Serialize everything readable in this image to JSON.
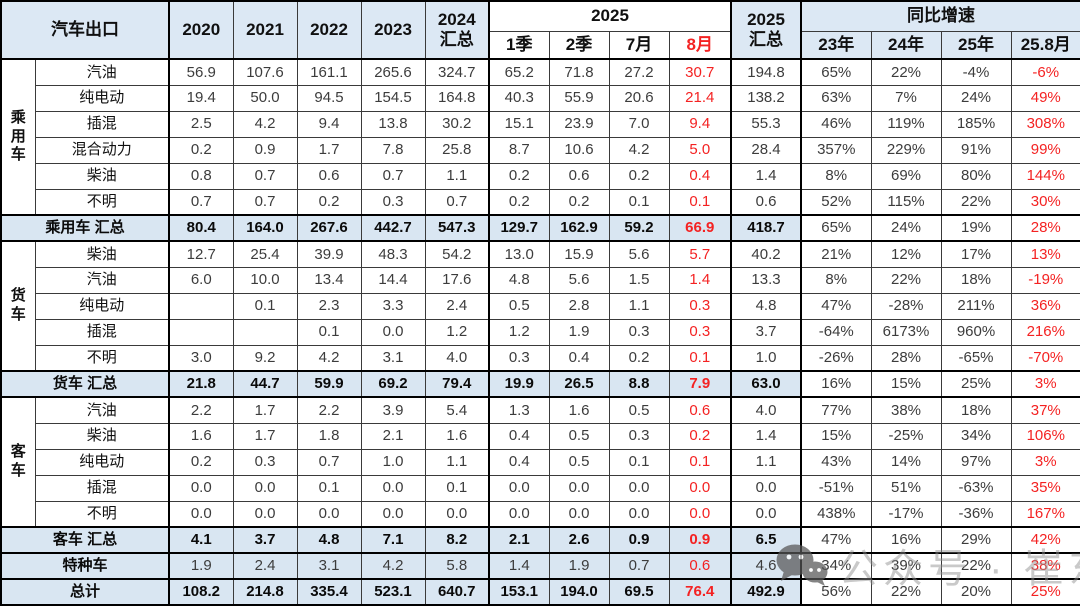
{
  "header": {
    "title": "汽车出口",
    "years": [
      "2020",
      "2021",
      "2022",
      "2023"
    ],
    "h2024": "2024\n汇总",
    "g2025": "2025",
    "sub2025": [
      "1季",
      "2季",
      "7月",
      "8月"
    ],
    "h2025_total": "2025\n汇总",
    "yoy": "同比增速",
    "sub_yoy": [
      "23年",
      "24年",
      "25年",
      "25.8月"
    ]
  },
  "chart_data": {
    "type": "table",
    "title": "汽车出口",
    "columns": [
      "2020",
      "2021",
      "2022",
      "2023",
      "2024汇总",
      "2025年1季",
      "2025年2季",
      "2025年7月",
      "2025年8月",
      "2025汇总",
      "同比增速23年",
      "同比增速24年",
      "同比增速25年",
      "同比增速25.8月"
    ],
    "sections": [
      {
        "group": "乘用车",
        "rows": [
          {
            "label": "汽油",
            "values": [
              "56.9",
              "107.6",
              "161.1",
              "265.6",
              "324.7",
              "65.2",
              "71.8",
              "27.2",
              "30.7",
              "194.8",
              "65%",
              "22%",
              "-4%",
              "-6%"
            ]
          },
          {
            "label": "纯电动",
            "values": [
              "19.4",
              "50.0",
              "94.5",
              "154.5",
              "164.8",
              "40.3",
              "55.9",
              "20.6",
              "21.4",
              "138.2",
              "63%",
              "7%",
              "24%",
              "49%"
            ]
          },
          {
            "label": "插混",
            "values": [
              "2.5",
              "4.2",
              "9.4",
              "13.8",
              "30.2",
              "15.1",
              "23.9",
              "7.0",
              "9.4",
              "55.3",
              "46%",
              "119%",
              "185%",
              "308%"
            ]
          },
          {
            "label": "混合动力",
            "values": [
              "0.2",
              "0.9",
              "1.7",
              "7.8",
              "25.8",
              "8.7",
              "10.6",
              "4.2",
              "5.0",
              "28.4",
              "357%",
              "229%",
              "91%",
              "99%"
            ]
          },
          {
            "label": "柴油",
            "values": [
              "0.8",
              "0.7",
              "0.6",
              "0.7",
              "1.1",
              "0.2",
              "0.6",
              "0.2",
              "0.4",
              "1.4",
              "8%",
              "69%",
              "80%",
              "144%"
            ]
          },
          {
            "label": "不明",
            "values": [
              "0.7",
              "0.7",
              "0.2",
              "0.3",
              "0.7",
              "0.2",
              "0.2",
              "0.1",
              "0.1",
              "0.6",
              "52%",
              "115%",
              "22%",
              "30%"
            ]
          }
        ],
        "summary": {
          "label": "乘用车 汇总",
          "values": [
            "80.4",
            "164.0",
            "267.6",
            "442.7",
            "547.3",
            "129.7",
            "162.9",
            "59.2",
            "66.9",
            "418.7",
            "65%",
            "24%",
            "19%",
            "28%"
          ]
        }
      },
      {
        "group": "货车",
        "rows": [
          {
            "label": "柴油",
            "values": [
              "12.7",
              "25.4",
              "39.9",
              "48.3",
              "54.2",
              "13.0",
              "15.9",
              "5.6",
              "5.7",
              "40.2",
              "21%",
              "12%",
              "17%",
              "13%"
            ]
          },
          {
            "label": "汽油",
            "values": [
              "6.0",
              "10.0",
              "13.4",
              "14.4",
              "17.6",
              "4.8",
              "5.6",
              "1.5",
              "1.4",
              "13.3",
              "8%",
              "22%",
              "18%",
              "-19%"
            ]
          },
          {
            "label": "纯电动",
            "values": [
              "",
              "0.1",
              "2.3",
              "3.3",
              "2.4",
              "0.5",
              "2.8",
              "1.1",
              "0.3",
              "4.8",
              "47%",
              "-28%",
              "211%",
              "36%"
            ]
          },
          {
            "label": "插混",
            "values": [
              "",
              "",
              "0.1",
              "0.0",
              "1.2",
              "1.2",
              "1.9",
              "0.3",
              "0.3",
              "3.7",
              "-64%",
              "6173%",
              "960%",
              "216%"
            ]
          },
          {
            "label": "不明",
            "values": [
              "3.0",
              "9.2",
              "4.2",
              "3.1",
              "4.0",
              "0.3",
              "0.4",
              "0.2",
              "0.1",
              "1.0",
              "-26%",
              "28%",
              "-65%",
              "-70%"
            ]
          }
        ],
        "summary": {
          "label": "货车 汇总",
          "values": [
            "21.8",
            "44.7",
            "59.9",
            "69.2",
            "79.4",
            "19.9",
            "26.5",
            "8.8",
            "7.9",
            "63.0",
            "16%",
            "15%",
            "25%",
            "3%"
          ]
        }
      },
      {
        "group": "客车",
        "rows": [
          {
            "label": "汽油",
            "values": [
              "2.2",
              "1.7",
              "2.2",
              "3.9",
              "5.4",
              "1.3",
              "1.6",
              "0.5",
              "0.6",
              "4.0",
              "77%",
              "38%",
              "18%",
              "37%"
            ]
          },
          {
            "label": "柴油",
            "values": [
              "1.6",
              "1.7",
              "1.8",
              "2.1",
              "1.6",
              "0.4",
              "0.5",
              "0.3",
              "0.2",
              "1.4",
              "15%",
              "-25%",
              "34%",
              "106%"
            ]
          },
          {
            "label": "纯电动",
            "values": [
              "0.2",
              "0.3",
              "0.7",
              "1.0",
              "1.1",
              "0.4",
              "0.5",
              "0.1",
              "0.1",
              "1.1",
              "43%",
              "14%",
              "97%",
              "3%"
            ]
          },
          {
            "label": "插混",
            "values": [
              "0.0",
              "0.0",
              "0.1",
              "0.0",
              "0.1",
              "0.0",
              "0.0",
              "0.0",
              "0.0",
              "0.0",
              "-51%",
              "51%",
              "-63%",
              "35%"
            ]
          },
          {
            "label": "不明",
            "values": [
              "0.0",
              "0.0",
              "0.0",
              "0.0",
              "0.0",
              "0.0",
              "0.0",
              "0.0",
              "0.0",
              "0.0",
              "438%",
              "-17%",
              "-36%",
              "167%"
            ]
          }
        ],
        "summary": {
          "label": "客车 汇总",
          "values": [
            "4.1",
            "3.7",
            "4.8",
            "7.1",
            "8.2",
            "2.1",
            "2.6",
            "0.9",
            "0.9",
            "6.5",
            "47%",
            "16%",
            "29%",
            "42%"
          ]
        }
      }
    ],
    "extra_rows": [
      {
        "label": "特种车",
        "style": "light",
        "values": [
          "1.9",
          "2.4",
          "3.1",
          "4.2",
          "5.8",
          "1.4",
          "1.9",
          "0.7",
          "0.6",
          "4.6",
          "34%",
          "39%",
          "22%",
          "38%"
        ]
      },
      {
        "label": "总计",
        "style": "total",
        "values": [
          "108.2",
          "214.8",
          "335.4",
          "523.1",
          "640.7",
          "153.1",
          "194.0",
          "69.5",
          "76.4",
          "492.9",
          "56%",
          "22%",
          "20%",
          "25%"
        ]
      }
    ]
  },
  "watermark": {
    "icon": "wechat-icon",
    "text": "公众号 · 崔东树"
  },
  "colors": {
    "header_bg": "#dce8f4",
    "summary_bg": "#d9e6f2",
    "highlight_red": "#f42222",
    "grid": "#3a3a3a",
    "thick_border": "#000000"
  }
}
